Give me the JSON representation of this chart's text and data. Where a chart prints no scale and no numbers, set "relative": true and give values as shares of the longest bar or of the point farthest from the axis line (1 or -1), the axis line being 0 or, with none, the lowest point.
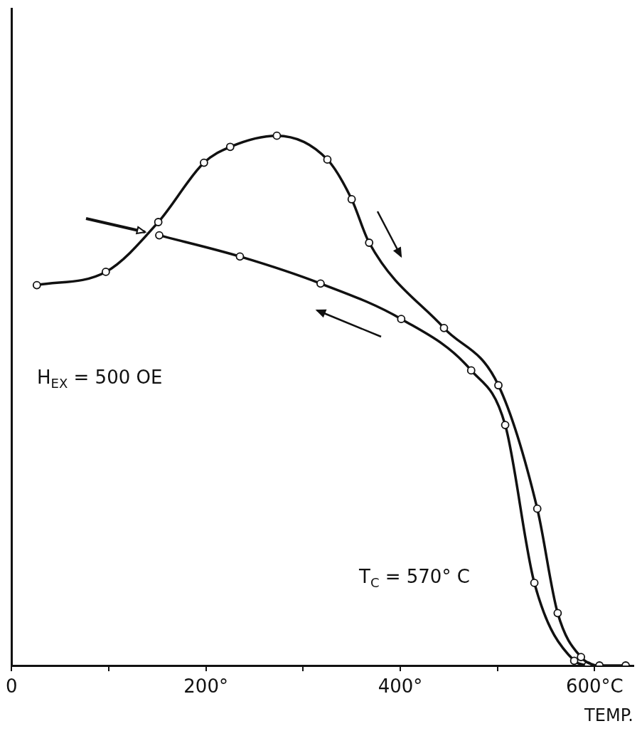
{
  "chart_data": {
    "type": "line",
    "relative": true,
    "xlabel": "TEMP.",
    "xlim": [
      0,
      640
    ],
    "xticks": [
      {
        "value": 0,
        "label": "0"
      },
      {
        "value": 100,
        "label": null
      },
      {
        "value": 200,
        "label": "200°"
      },
      {
        "value": 300,
        "label": null
      },
      {
        "value": 400,
        "label": "400°"
      },
      {
        "value": 500,
        "label": null
      },
      {
        "value": 600,
        "label": "600°C"
      }
    ],
    "series": [
      {
        "color": "#111111",
        "x": [
          26,
          97,
          151,
          198,
          225,
          273,
          325,
          350,
          368,
          445,
          501,
          541,
          562,
          586,
          605,
          632
        ],
        "values": [
          0.718,
          0.743,
          0.837,
          0.949,
          0.979,
          1,
          0.955,
          0.88,
          0.798,
          0.637,
          0.529,
          0.296,
          0.099,
          0.016,
          0,
          0
        ]
      },
      {
        "color": "#111111",
        "x": [
          152,
          235,
          318,
          401,
          473,
          508,
          538,
          579,
          593
        ],
        "values": [
          0.812,
          0.772,
          0.721,
          0.654,
          0.557,
          0.454,
          0.156,
          0.009,
          0
        ]
      }
    ],
    "annotations": [
      "H$_{EX}$ = 500  OE",
      "T$_{C}$ = 570° C"
    ],
    "marker": "circle",
    "line_style": "solid",
    "grid": false,
    "legend": false
  }
}
